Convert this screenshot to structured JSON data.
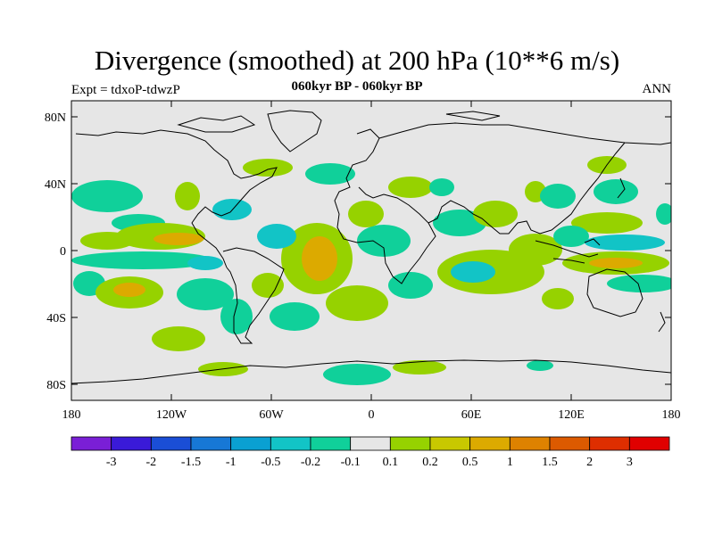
{
  "header": {
    "title": "Divergence (smoothed) at 200 hPa (10**6 m/s)",
    "experiment": "Expt = tdxoP-tdwzP",
    "period": "060kyr BP - 060kyr BP",
    "season": "ANN"
  },
  "axes": {
    "lat_ticks": [
      "80N",
      "40N",
      "0",
      "40S",
      "80S"
    ],
    "lon_ticks": [
      "180",
      "120W",
      "60W",
      "0",
      "60E",
      "120E",
      "180"
    ]
  },
  "colorbar": {
    "labels": [
      "-3",
      "-2",
      "-1.5",
      "-1",
      "-0.5",
      "-0.2",
      "-0.1",
      "0.1",
      "0.2",
      "0.5",
      "1",
      "1.5",
      "2",
      "3"
    ],
    "colors": [
      "#7a1fd6",
      "#3a1ad8",
      "#1a4ed6",
      "#1778d6",
      "#0aa0d2",
      "#12c4c6",
      "#10d09a",
      "#e6e6e6",
      "#96d200",
      "#c8c800",
      "#dcaa00",
      "#de8200",
      "#dc5a00",
      "#de2e00",
      "#e00000"
    ]
  },
  "map_colors": {
    "background": "#e6e6e6",
    "green": "#96d200",
    "yellow": "#c8c800",
    "orange": "#dcaa00",
    "teal": "#10d09a",
    "cyan": "#12c4c6",
    "blue": "#0aa0d2"
  }
}
